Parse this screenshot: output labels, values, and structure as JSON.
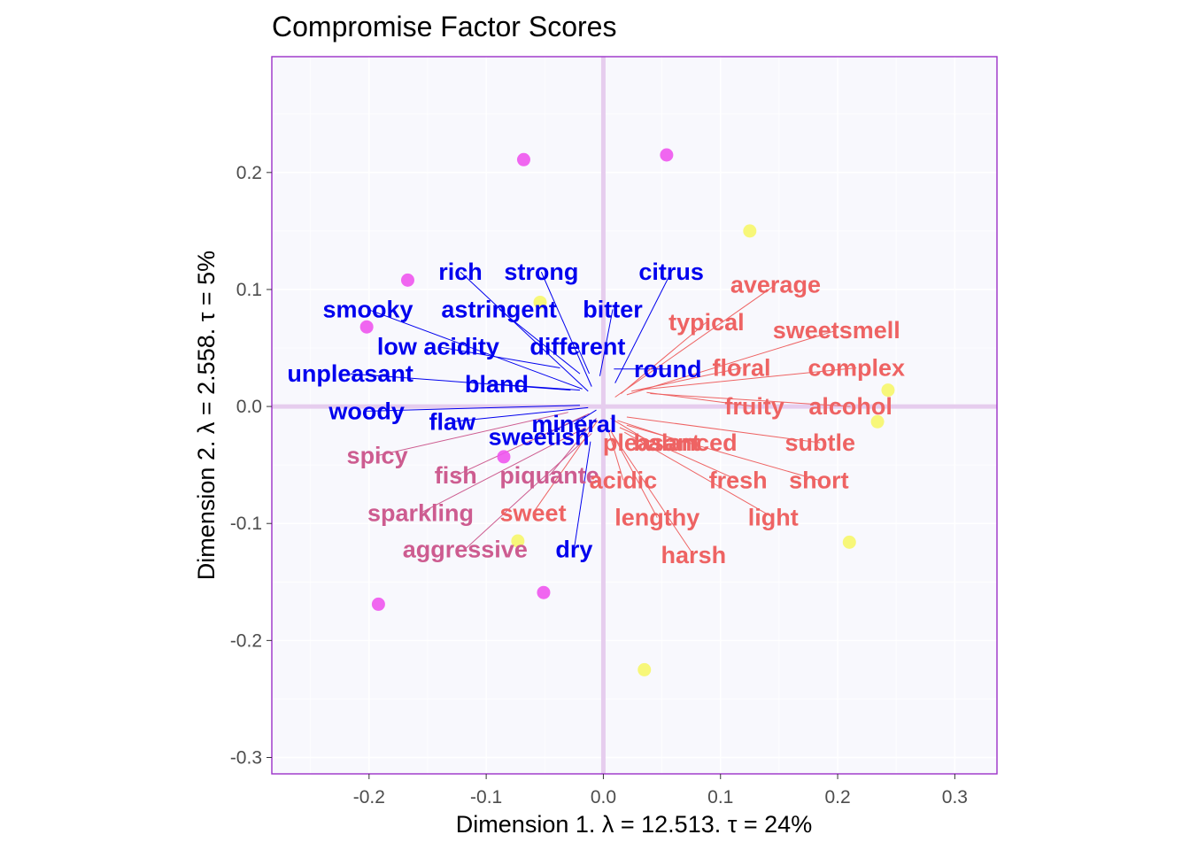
{
  "chart_data": {
    "type": "scatter",
    "title": "Compromise Factor Scores",
    "xlabel": "Dimension 1.   λ = 12.513.  τ = 24%",
    "ylabel": "Dimension 2.   λ = 2.558.  τ = 5%",
    "xlim": [
      -0.283,
      0.336
    ],
    "ylim": [
      -0.314,
      0.299
    ],
    "x_ticks": [
      "-0.2",
      "-0.1",
      "0.0",
      "0.1",
      "0.2",
      "0.3"
    ],
    "y_ticks": [
      "0.2",
      "0.1",
      "0.0",
      "-0.1",
      "-0.2",
      "-0.3"
    ],
    "x_tick_values": [
      -0.2,
      -0.1,
      0.0,
      0.1,
      0.2,
      0.3
    ],
    "y_tick_values": [
      0.2,
      0.1,
      0.0,
      -0.1,
      -0.2,
      -0.3
    ],
    "grid": true,
    "colors": {
      "panel_bg": "#f8f8fd",
      "panel_border": "#9b30c8",
      "zero_lines": "#e6cdee",
      "magenta_points": "#ee55ee",
      "yellow_points": "#f6f66a",
      "blue_labels": "#0000ee",
      "pink_labels": "#cd5c90",
      "salmon_labels": "#ee6363"
    },
    "point_series": [
      {
        "color": "magenta",
        "points": [
          {
            "x": -0.068,
            "y": 0.211
          },
          {
            "x": 0.054,
            "y": 0.215
          },
          {
            "x": -0.167,
            "y": 0.108
          },
          {
            "x": -0.202,
            "y": 0.068
          },
          {
            "x": -0.085,
            "y": -0.043
          },
          {
            "x": -0.192,
            "y": -0.169
          },
          {
            "x": -0.051,
            "y": -0.159
          }
        ]
      },
      {
        "color": "yellow",
        "points": [
          {
            "x": 0.125,
            "y": 0.15
          },
          {
            "x": -0.054,
            "y": 0.089
          },
          {
            "x": 0.243,
            "y": 0.014
          },
          {
            "x": 0.234,
            "y": -0.013
          },
          {
            "x": 0.21,
            "y": -0.116
          },
          {
            "x": -0.073,
            "y": -0.115
          },
          {
            "x": 0.035,
            "y": -0.225
          }
        ]
      }
    ],
    "variable_labels": [
      {
        "text": "rich",
        "color": "blue",
        "x": -0.122,
        "y": 0.115,
        "ax": -0.013,
        "ay": 0.013
      },
      {
        "text": "strong",
        "color": "blue",
        "x": -0.053,
        "y": 0.115,
        "ax": -0.01,
        "ay": 0.017
      },
      {
        "text": "citrus",
        "color": "blue",
        "x": 0.058,
        "y": 0.115,
        "ax": 0.01,
        "ay": 0.02
      },
      {
        "text": "smooky",
        "color": "blue",
        "x": -0.201,
        "y": 0.083,
        "ax": -0.018,
        "ay": 0.015
      },
      {
        "text": "astringent",
        "color": "blue",
        "x": -0.089,
        "y": 0.083,
        "ax": -0.02,
        "ay": 0.028
      },
      {
        "text": "bitter",
        "color": "blue",
        "x": 0.008,
        "y": 0.083,
        "ax": -0.003,
        "ay": 0.026
      },
      {
        "text": "low acidity",
        "color": "blue",
        "x": -0.141,
        "y": 0.051,
        "ax": -0.037,
        "ay": 0.033
      },
      {
        "text": "different",
        "color": "blue",
        "x": -0.022,
        "y": 0.051,
        "ax": -0.012,
        "ay": 0.028
      },
      {
        "text": "round",
        "color": "blue",
        "x": 0.055,
        "y": 0.032,
        "ax": 0.009,
        "ay": 0.032
      },
      {
        "text": "unpleasant",
        "color": "blue",
        "x": -0.216,
        "y": 0.028,
        "ax": -0.028,
        "ay": 0.014
      },
      {
        "text": "bland",
        "color": "blue",
        "x": -0.091,
        "y": 0.019,
        "ax": -0.02,
        "ay": 0.014
      },
      {
        "text": "woody",
        "color": "blue",
        "x": -0.202,
        "y": -0.004,
        "ax": -0.02,
        "ay": 0.001
      },
      {
        "text": "flaw",
        "color": "blue",
        "x": -0.129,
        "y": -0.013,
        "ax": -0.013,
        "ay": -0.001
      },
      {
        "text": "mineral",
        "color": "blue",
        "x": -0.025,
        "y": -0.015,
        "ax": -0.006,
        "ay": -0.003
      },
      {
        "text": "sweetish",
        "color": "blue",
        "x": -0.055,
        "y": -0.026,
        "ax": -0.015,
        "ay": -0.008
      },
      {
        "text": "dry",
        "color": "blue",
        "x": -0.025,
        "y": -0.122,
        "ax": -0.011,
        "ay": -0.03
      },
      {
        "text": "spicy",
        "color": "pink",
        "x": -0.193,
        "y": -0.042,
        "ax": -0.03,
        "ay": -0.005
      },
      {
        "text": "fish",
        "color": "pink",
        "x": -0.126,
        "y": -0.059,
        "ax": -0.012,
        "ay": -0.006
      },
      {
        "text": "piquante",
        "color": "pink",
        "x": -0.046,
        "y": -0.059,
        "ax": -0.006,
        "ay": -0.01
      },
      {
        "text": "sparkling",
        "color": "pink",
        "x": -0.156,
        "y": -0.091,
        "ax": -0.015,
        "ay": -0.018
      },
      {
        "text": "aggressive",
        "color": "pink",
        "x": -0.118,
        "y": -0.122,
        "ax": -0.01,
        "ay": -0.023
      },
      {
        "text": "average",
        "color": "salmon",
        "x": 0.147,
        "y": 0.104,
        "ax": 0.01,
        "ay": 0.008
      },
      {
        "text": "typical",
        "color": "salmon",
        "x": 0.088,
        "y": 0.072,
        "ax": 0.015,
        "ay": 0.011
      },
      {
        "text": "sweetsmell",
        "color": "salmon",
        "x": 0.199,
        "y": 0.065,
        "ax": 0.02,
        "ay": 0.01
      },
      {
        "text": "floral",
        "color": "salmon",
        "x": 0.118,
        "y": 0.033,
        "ax": 0.024,
        "ay": 0.013
      },
      {
        "text": "complex",
        "color": "salmon",
        "x": 0.216,
        "y": 0.033,
        "ax": 0.028,
        "ay": 0.014
      },
      {
        "text": "fruity",
        "color": "salmon",
        "x": 0.129,
        "y": 0.0,
        "ax": 0.037,
        "ay": 0.012
      },
      {
        "text": "alcohol",
        "color": "salmon",
        "x": 0.211,
        "y": 0.0,
        "ax": 0.04,
        "ay": 0.011
      },
      {
        "text": "pleasant",
        "color": "salmon",
        "x": 0.041,
        "y": -0.031,
        "ax": 0.006,
        "ay": -0.01
      },
      {
        "text": "balanced",
        "color": "salmon",
        "x": 0.07,
        "y": -0.031,
        "ax": 0.012,
        "ay": -0.012
      },
      {
        "text": "subtle",
        "color": "salmon",
        "x": 0.185,
        "y": -0.031,
        "ax": 0.02,
        "ay": -0.009
      },
      {
        "text": "acidic",
        "color": "salmon",
        "x": 0.017,
        "y": -0.063,
        "ax": 0.003,
        "ay": -0.016
      },
      {
        "text": "fresh",
        "color": "salmon",
        "x": 0.115,
        "y": -0.063,
        "ax": 0.014,
        "ay": -0.018
      },
      {
        "text": "short",
        "color": "salmon",
        "x": 0.184,
        "y": -0.063,
        "ax": 0.02,
        "ay": -0.016
      },
      {
        "text": "lengthy",
        "color": "salmon",
        "x": 0.046,
        "y": -0.095,
        "ax": 0.006,
        "ay": -0.02
      },
      {
        "text": "light",
        "color": "salmon",
        "x": 0.145,
        "y": -0.095,
        "ax": 0.018,
        "ay": -0.022
      },
      {
        "text": "harsh",
        "color": "salmon",
        "x": 0.077,
        "y": -0.127,
        "ax": 0.008,
        "ay": -0.024
      },
      {
        "text": "sweet",
        "color": "salmon",
        "x": -0.06,
        "y": -0.091,
        "ax": -0.005,
        "ay": -0.012
      }
    ]
  }
}
